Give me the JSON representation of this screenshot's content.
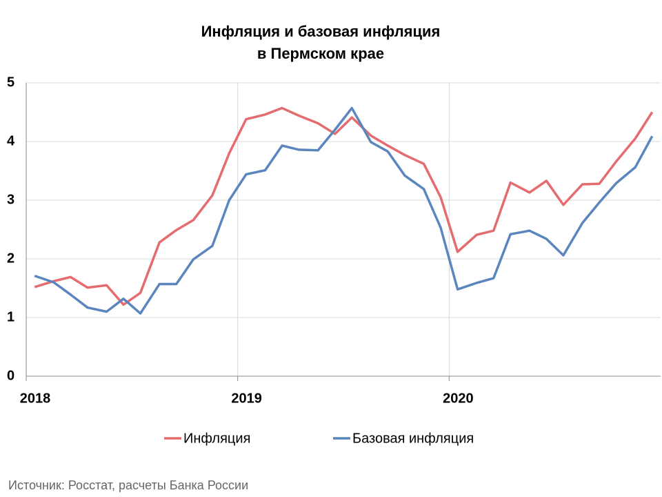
{
  "chart_data": {
    "type": "line",
    "title": [
      "Инфляция и базовая инфляция",
      "в  Пермском крае"
    ],
    "source": "Источник: Росстат, расчеты Банка России",
    "x": [
      2018.04,
      2018.13,
      2018.21,
      2018.29,
      2018.38,
      2018.46,
      2018.54,
      2018.63,
      2018.71,
      2018.79,
      2018.88,
      2018.96,
      2019.04,
      2019.13,
      2019.21,
      2019.29,
      2019.38,
      2019.46,
      2019.54,
      2019.63,
      2019.71,
      2019.79,
      2019.88,
      2019.96,
      2020.04,
      2020.13,
      2020.21,
      2020.29,
      2020.38,
      2020.46,
      2020.54,
      2020.63,
      2020.71,
      2020.79,
      2020.88,
      2020.96
    ],
    "series": [
      {
        "name": "Инфляция",
        "color": "#e46c6f",
        "values": [
          1.52,
          1.62,
          1.69,
          1.51,
          1.55,
          1.22,
          1.42,
          2.28,
          2.49,
          2.66,
          3.08,
          3.8,
          4.38,
          4.46,
          4.57,
          4.44,
          4.31,
          4.13,
          4.41,
          4.1,
          3.93,
          3.77,
          3.62,
          3.05,
          2.12,
          2.41,
          2.48,
          3.3,
          3.13,
          3.33,
          2.92,
          3.27,
          3.28,
          3.66,
          4.05,
          4.5
        ]
      },
      {
        "name": "Базовая инфляция",
        "color": "#5b86bd",
        "values": [
          1.71,
          1.6,
          1.39,
          1.17,
          1.1,
          1.32,
          1.07,
          1.57,
          1.57,
          1.99,
          2.22,
          3.0,
          3.44,
          3.51,
          3.93,
          3.86,
          3.85,
          4.2,
          4.57,
          3.99,
          3.83,
          3.42,
          3.19,
          2.53,
          1.48,
          1.59,
          1.67,
          2.42,
          2.48,
          2.34,
          2.06,
          2.61,
          2.96,
          3.29,
          3.56,
          4.09
        ]
      }
    ],
    "xlim": [
      2018,
      2021
    ],
    "xticks": [
      2018,
      2019,
      2020
    ],
    "ylim": [
      0,
      5
    ],
    "yticks": [
      0,
      1,
      2,
      3,
      4,
      5
    ],
    "grid": true
  }
}
